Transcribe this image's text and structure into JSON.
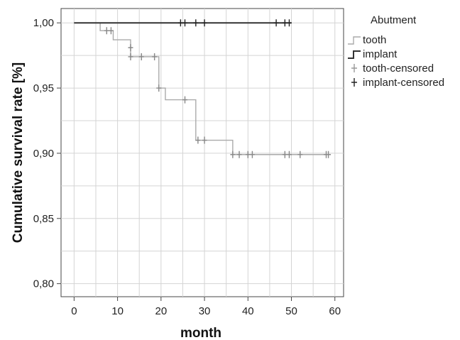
{
  "chart_data": {
    "type": "line",
    "subtype": "kaplan-meier-step",
    "xlabel": "month",
    "ylabel": "Cumulative survival rate [%]",
    "xlim": [
      -3,
      62
    ],
    "ylim": [
      0.79,
      1.011
    ],
    "x_ticks": [
      0,
      10,
      20,
      30,
      40,
      50,
      60
    ],
    "x_tick_labels": [
      "0",
      "10",
      "20",
      "30",
      "40",
      "50",
      "60"
    ],
    "y_ticks": [
      0.8,
      0.85,
      0.9,
      0.95,
      1.0
    ],
    "y_tick_labels": [
      "0,80",
      "0,85",
      "0,90",
      "0,95",
      "1,00"
    ],
    "grid": true,
    "legend": {
      "title": "Abutment",
      "placement": "right",
      "entries": [
        "tooth",
        "implant",
        "tooth-censored",
        "implant-censored"
      ]
    },
    "series": [
      {
        "name": "tooth",
        "color": "#aaaaaa",
        "steps": [
          [
            0,
            1.0
          ],
          [
            6,
            0.994
          ],
          [
            9,
            0.987
          ],
          [
            13,
            0.974
          ],
          [
            19.5,
            0.95
          ],
          [
            21,
            0.941
          ],
          [
            28,
            0.91
          ],
          [
            36.5,
            0.899
          ],
          [
            59,
            0.899
          ]
        ],
        "censored": [
          [
            7.5,
            0.994
          ],
          [
            8.5,
            0.994
          ],
          [
            13,
            0.981
          ],
          [
            13,
            0.974
          ],
          [
            15.5,
            0.974
          ],
          [
            18.5,
            0.974
          ],
          [
            19.5,
            0.95
          ],
          [
            25.5,
            0.941
          ],
          [
            28.5,
            0.91
          ],
          [
            30,
            0.91
          ],
          [
            36.5,
            0.899
          ],
          [
            38,
            0.899
          ],
          [
            40,
            0.899
          ],
          [
            41,
            0.899
          ],
          [
            48.5,
            0.899
          ],
          [
            49.5,
            0.899
          ],
          [
            52,
            0.899
          ],
          [
            58,
            0.899
          ],
          [
            58.5,
            0.899
          ]
        ]
      },
      {
        "name": "implant",
        "color": "#333333",
        "steps": [
          [
            0,
            1.0
          ],
          [
            50,
            1.0
          ]
        ],
        "censored": [
          [
            24.5,
            1.0
          ],
          [
            25.5,
            1.0
          ],
          [
            28,
            1.0
          ],
          [
            30,
            1.0
          ],
          [
            46.5,
            1.0
          ],
          [
            48.5,
            1.0
          ],
          [
            49.5,
            1.0
          ]
        ]
      }
    ]
  }
}
